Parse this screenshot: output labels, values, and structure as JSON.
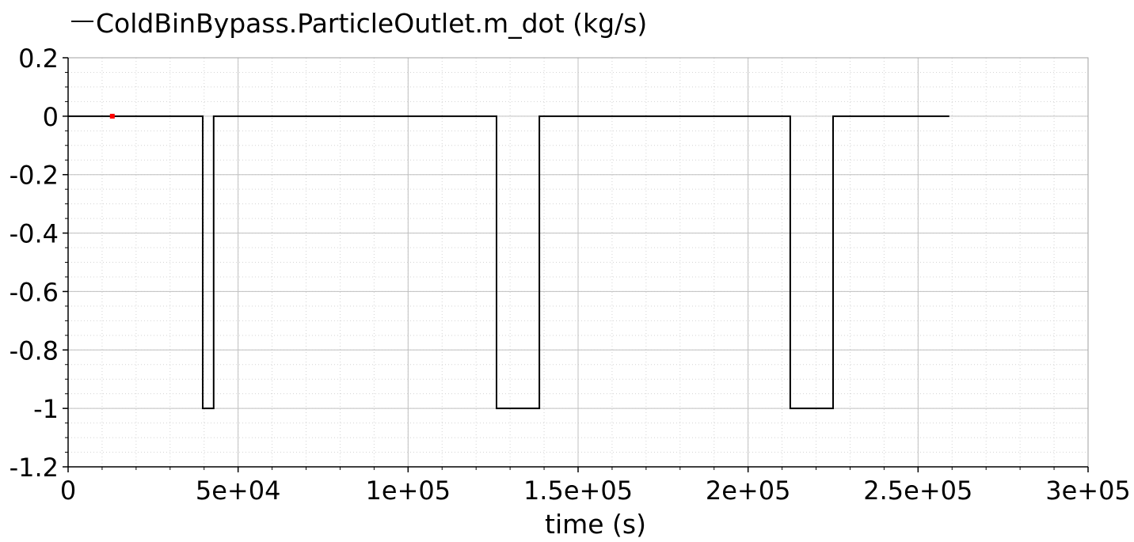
{
  "chart_data": {
    "type": "line",
    "title": "",
    "xlabel": "time (s)",
    "ylabel": "",
    "xlim": [
      0,
      300000
    ],
    "ylim": [
      -1.2,
      0.2
    ],
    "x_ticks": [
      0,
      50000,
      100000,
      150000,
      200000,
      250000,
      300000
    ],
    "x_tick_labels": [
      "0",
      "5e+04",
      "1e+05",
      "1.5e+05",
      "2e+05",
      "2.5e+05",
      "3e+05"
    ],
    "y_ticks": [
      0.2,
      0,
      -0.2,
      -0.4,
      -0.6,
      -0.8,
      -1,
      -1.2
    ],
    "y_tick_labels": [
      "0.2",
      "0",
      "-0.2",
      "-0.4",
      "-0.6",
      "-0.8",
      "-1",
      "-1.2"
    ],
    "grid": true,
    "legend_position": "top-left",
    "series": [
      {
        "name": "ColdBinBypass.ParticleOutlet.m_dot (kg/s)",
        "color": "#000000",
        "x": [
          0,
          39600,
          39600,
          42800,
          42800,
          126000,
          126000,
          138600,
          138600,
          212400,
          212400,
          225000,
          225000,
          259200
        ],
        "y": [
          0,
          0,
          -1,
          -1,
          0,
          0,
          -1,
          -1,
          0,
          0,
          -1,
          -1,
          0,
          0
        ]
      }
    ],
    "marker": {
      "x": 13000,
      "y": 0,
      "color": "#ff0000"
    }
  }
}
